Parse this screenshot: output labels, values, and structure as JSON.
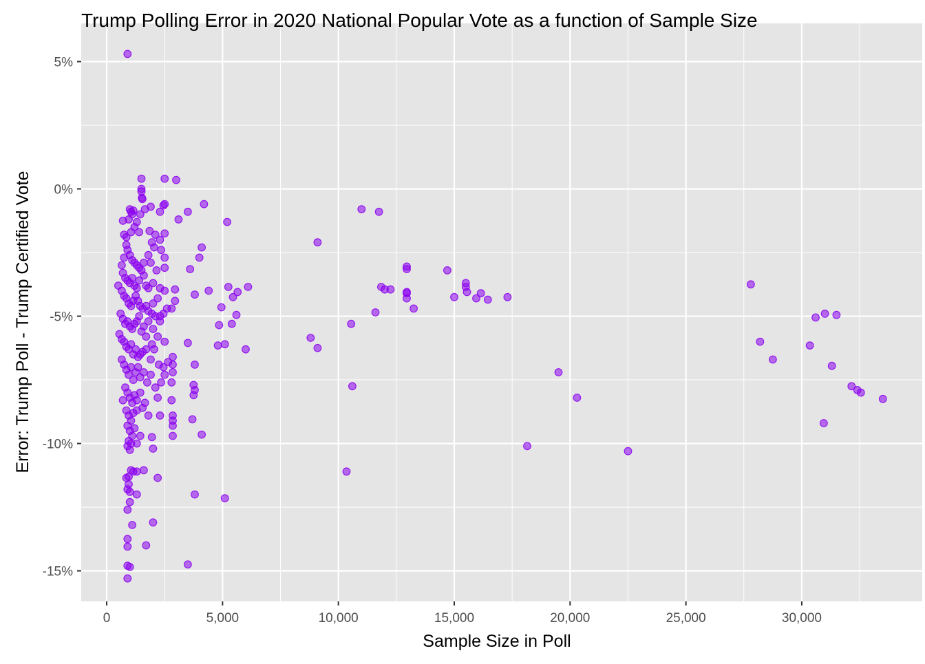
{
  "chart_data": {
    "type": "scatter",
    "title": "Trump Polling Error in 2020 National Popular Vote as a function of Sample Size",
    "xlabel": "Sample Size in Poll",
    "ylabel": "Error: Trump Poll - Trump Certified Vote",
    "xlim": [
      -1100,
      35200
    ],
    "ylim": [
      -16.2,
      6.5
    ],
    "x_ticks": [
      0,
      5000,
      10000,
      15000,
      20000,
      25000,
      30000
    ],
    "x_tick_labels": [
      "0",
      "5,000",
      "10,000",
      "15,000",
      "20,000",
      "25,000",
      "30,000"
    ],
    "y_ticks": [
      5,
      0,
      -5,
      -10,
      -15
    ],
    "y_tick_labels": [
      "5%",
      "0%",
      "-5%",
      "-10%",
      "-15%"
    ],
    "grid": true,
    "legend": "none",
    "colors": {
      "point": "#8b00ee",
      "panel": "#e5e5e5",
      "grid": "#ffffff",
      "tick": "#4d4d4d"
    },
    "series": [
      {
        "points": [
          [
            900,
            5.3
          ],
          [
            1500,
            0.4
          ],
          [
            2500,
            0.4
          ],
          [
            3000,
            0.35
          ],
          [
            1500,
            0.0
          ],
          [
            1500,
            -0.1
          ],
          [
            1520,
            -0.35
          ],
          [
            1540,
            -0.4
          ],
          [
            2500,
            -0.6
          ],
          [
            2450,
            -0.65
          ],
          [
            2300,
            -0.9
          ],
          [
            1900,
            -0.7
          ],
          [
            1650,
            -0.8
          ],
          [
            1450,
            -1.0
          ],
          [
            3500,
            -0.9
          ],
          [
            3100,
            -1.2
          ],
          [
            4200,
            -0.6
          ],
          [
            5200,
            -1.3
          ],
          [
            1000,
            -0.8
          ],
          [
            1050,
            -0.9
          ],
          [
            1100,
            -1.0
          ],
          [
            1150,
            -0.85
          ],
          [
            950,
            -1.2
          ],
          [
            700,
            -1.25
          ],
          [
            1300,
            -1.3
          ],
          [
            1200,
            -1.5
          ],
          [
            1050,
            -1.7
          ],
          [
            850,
            -1.9
          ],
          [
            750,
            -1.8
          ],
          [
            1400,
            -1.7
          ],
          [
            1850,
            -1.65
          ],
          [
            2100,
            -1.8
          ],
          [
            2500,
            -1.75
          ],
          [
            2300,
            -2.0
          ],
          [
            1950,
            -2.1
          ],
          [
            2050,
            -2.3
          ],
          [
            2350,
            -2.4
          ],
          [
            2500,
            -2.7
          ],
          [
            2500,
            -3.1
          ],
          [
            4100,
            -2.3
          ],
          [
            4000,
            -2.7
          ],
          [
            3600,
            -3.15
          ],
          [
            850,
            -2.2
          ],
          [
            900,
            -2.4
          ],
          [
            1000,
            -2.6
          ],
          [
            1100,
            -2.8
          ],
          [
            1200,
            -2.9
          ],
          [
            1300,
            -3.0
          ],
          [
            1400,
            -3.1
          ],
          [
            1500,
            -3.2
          ],
          [
            1600,
            -2.9
          ],
          [
            1800,
            -2.6
          ],
          [
            1900,
            -2.9
          ],
          [
            2150,
            -3.2
          ],
          [
            750,
            -2.7
          ],
          [
            650,
            -3.0
          ],
          [
            700,
            -3.3
          ],
          [
            800,
            -3.5
          ],
          [
            900,
            -3.6
          ],
          [
            1000,
            -3.7
          ],
          [
            1100,
            -3.5
          ],
          [
            1200,
            -3.8
          ],
          [
            1300,
            -3.9
          ],
          [
            1400,
            -3.6
          ],
          [
            1600,
            -3.4
          ],
          [
            1700,
            -3.8
          ],
          [
            1800,
            -3.9
          ],
          [
            2000,
            -3.7
          ],
          [
            2300,
            -3.9
          ],
          [
            2500,
            -4.0
          ],
          [
            2200,
            -4.3
          ],
          [
            2000,
            -4.5
          ],
          [
            500,
            -3.8
          ],
          [
            650,
            -4.0
          ],
          [
            750,
            -4.2
          ],
          [
            850,
            -4.3
          ],
          [
            950,
            -4.5
          ],
          [
            1050,
            -4.6
          ],
          [
            1150,
            -4.4
          ],
          [
            1250,
            -4.2
          ],
          [
            1350,
            -4.4
          ],
          [
            1450,
            -4.6
          ],
          [
            1550,
            -4.7
          ],
          [
            1700,
            -4.6
          ],
          [
            1800,
            -4.8
          ],
          [
            1950,
            -4.9
          ],
          [
            2100,
            -5.0
          ],
          [
            2300,
            -5.0
          ],
          [
            2450,
            -4.9
          ],
          [
            2600,
            -4.7
          ],
          [
            2800,
            -4.7
          ],
          [
            2950,
            -4.4
          ],
          [
            2950,
            -3.95
          ],
          [
            3800,
            -4.15
          ],
          [
            4400,
            -4.0
          ],
          [
            600,
            -4.9
          ],
          [
            700,
            -5.1
          ],
          [
            800,
            -5.3
          ],
          [
            900,
            -5.2
          ],
          [
            1000,
            -5.4
          ],
          [
            1100,
            -5.5
          ],
          [
            1200,
            -5.3
          ],
          [
            1300,
            -5.2
          ],
          [
            1400,
            -5.0
          ],
          [
            1500,
            -5.6
          ],
          [
            1600,
            -5.4
          ],
          [
            1700,
            -5.8
          ],
          [
            1800,
            -5.2
          ],
          [
            2000,
            -5.5
          ],
          [
            2200,
            -5.8
          ],
          [
            2300,
            -5.2
          ],
          [
            2500,
            -6.0
          ],
          [
            1950,
            -6.1
          ],
          [
            550,
            -5.7
          ],
          [
            650,
            -5.9
          ],
          [
            750,
            -6.0
          ],
          [
            850,
            -6.2
          ],
          [
            950,
            -6.3
          ],
          [
            1050,
            -6.1
          ],
          [
            1150,
            -6.5
          ],
          [
            1250,
            -6.3
          ],
          [
            1350,
            -6.6
          ],
          [
            1450,
            -6.5
          ],
          [
            1550,
            -6.4
          ],
          [
            1700,
            -6.3
          ],
          [
            1900,
            -6.7
          ],
          [
            2050,
            -6.3
          ],
          [
            2250,
            -6.9
          ],
          [
            2450,
            -7.0
          ],
          [
            2650,
            -6.8
          ],
          [
            2850,
            -6.9
          ],
          [
            2850,
            -6.6
          ],
          [
            3800,
            -6.9
          ],
          [
            2850,
            -7.2
          ],
          [
            2500,
            -7.3
          ],
          [
            650,
            -6.7
          ],
          [
            750,
            -6.9
          ],
          [
            850,
            -7.1
          ],
          [
            950,
            -7.3
          ],
          [
            1050,
            -7.0
          ],
          [
            1150,
            -7.5
          ],
          [
            1250,
            -7.2
          ],
          [
            1350,
            -7.0
          ],
          [
            1450,
            -7.4
          ],
          [
            1600,
            -7.2
          ],
          [
            1750,
            -7.6
          ],
          [
            1900,
            -7.3
          ],
          [
            2100,
            -7.8
          ],
          [
            2350,
            -7.6
          ],
          [
            2800,
            -7.6
          ],
          [
            3750,
            -7.7
          ],
          [
            3800,
            -7.9
          ],
          [
            3750,
            -8.1
          ],
          [
            800,
            -7.8
          ],
          [
            900,
            -8.0
          ],
          [
            1000,
            -8.2
          ],
          [
            1100,
            -8.4
          ],
          [
            1200,
            -8.1
          ],
          [
            1300,
            -8.3
          ],
          [
            1450,
            -8.0
          ],
          [
            1650,
            -8.4
          ],
          [
            2200,
            -8.2
          ],
          [
            2800,
            -8.3
          ],
          [
            700,
            -8.3
          ],
          [
            850,
            -8.7
          ],
          [
            950,
            -8.9
          ],
          [
            1050,
            -9.1
          ],
          [
            1150,
            -8.8
          ],
          [
            1300,
            -8.7
          ],
          [
            1550,
            -8.6
          ],
          [
            1800,
            -8.9
          ],
          [
            2300,
            -8.9
          ],
          [
            2850,
            -8.9
          ],
          [
            2850,
            -9.1
          ],
          [
            2850,
            -9.3
          ],
          [
            3700,
            -9.05
          ],
          [
            900,
            -9.3
          ],
          [
            1000,
            -9.5
          ],
          [
            1100,
            -9.7
          ],
          [
            1200,
            -9.4
          ],
          [
            1450,
            -9.7
          ],
          [
            1950,
            -9.75
          ],
          [
            2850,
            -9.7
          ],
          [
            4100,
            -9.65
          ],
          [
            950,
            -9.9
          ],
          [
            1050,
            -10.0
          ],
          [
            900,
            -10.1
          ],
          [
            1000,
            -10.25
          ],
          [
            1300,
            -10.0
          ],
          [
            2000,
            -10.2
          ],
          [
            1050,
            -11.05
          ],
          [
            1150,
            -11.1
          ],
          [
            1300,
            -11.1
          ],
          [
            1600,
            -11.05
          ],
          [
            950,
            -11.3
          ],
          [
            850,
            -11.35
          ],
          [
            2200,
            -11.35
          ],
          [
            950,
            -11.6
          ],
          [
            900,
            -11.8
          ],
          [
            1000,
            -11.9
          ],
          [
            1300,
            -12.0
          ],
          [
            3800,
            -12.0
          ],
          [
            5100,
            -12.15
          ],
          [
            1000,
            -12.3
          ],
          [
            900,
            -12.6
          ],
          [
            1100,
            -13.2
          ],
          [
            2000,
            -13.1
          ],
          [
            900,
            -13.75
          ],
          [
            1700,
            -14.0
          ],
          [
            900,
            -14.05
          ],
          [
            900,
            -14.8
          ],
          [
            1000,
            -14.85
          ],
          [
            3500,
            -14.75
          ],
          [
            900,
            -15.3
          ],
          [
            5250,
            -3.85
          ],
          [
            5650,
            -4.05
          ],
          [
            6100,
            -3.85
          ],
          [
            5450,
            -4.25
          ],
          [
            4950,
            -4.65
          ],
          [
            5600,
            -4.95
          ],
          [
            4850,
            -5.35
          ],
          [
            5400,
            -5.3
          ],
          [
            4800,
            -6.15
          ],
          [
            5100,
            -6.1
          ],
          [
            6000,
            -6.3
          ],
          [
            3500,
            -6.05
          ],
          [
            9100,
            -2.1
          ],
          [
            8800,
            -5.85
          ],
          [
            9100,
            -6.25
          ],
          [
            11000,
            -0.8
          ],
          [
            11750,
            -0.9
          ],
          [
            10550,
            -5.3
          ],
          [
            10350,
            -11.1
          ],
          [
            10600,
            -7.75
          ],
          [
            11850,
            -3.85
          ],
          [
            12000,
            -3.95
          ],
          [
            12250,
            -3.95
          ],
          [
            11600,
            -4.85
          ],
          [
            12950,
            -3.05
          ],
          [
            12950,
            -3.15
          ],
          [
            12950,
            -4.05
          ],
          [
            12950,
            -4.1
          ],
          [
            12950,
            -4.3
          ],
          [
            13250,
            -4.7
          ],
          [
            14700,
            -3.2
          ],
          [
            15000,
            -4.25
          ],
          [
            15500,
            -3.7
          ],
          [
            15500,
            -3.85
          ],
          [
            15550,
            -4.05
          ],
          [
            15950,
            -4.3
          ],
          [
            16150,
            -4.1
          ],
          [
            16450,
            -4.35
          ],
          [
            17300,
            -4.25
          ],
          [
            18150,
            -10.1
          ],
          [
            19500,
            -7.2
          ],
          [
            20300,
            -8.2
          ],
          [
            22500,
            -10.3
          ],
          [
            27800,
            -3.75
          ],
          [
            28200,
            -6.0
          ],
          [
            28750,
            -6.7
          ],
          [
            30350,
            -6.15
          ],
          [
            30600,
            -5.05
          ],
          [
            31000,
            -4.9
          ],
          [
            31500,
            -4.95
          ],
          [
            31300,
            -6.95
          ],
          [
            30950,
            -9.2
          ],
          [
            32150,
            -7.75
          ],
          [
            32400,
            -7.9
          ],
          [
            32550,
            -8.0
          ],
          [
            33500,
            -8.25
          ]
        ]
      }
    ]
  }
}
